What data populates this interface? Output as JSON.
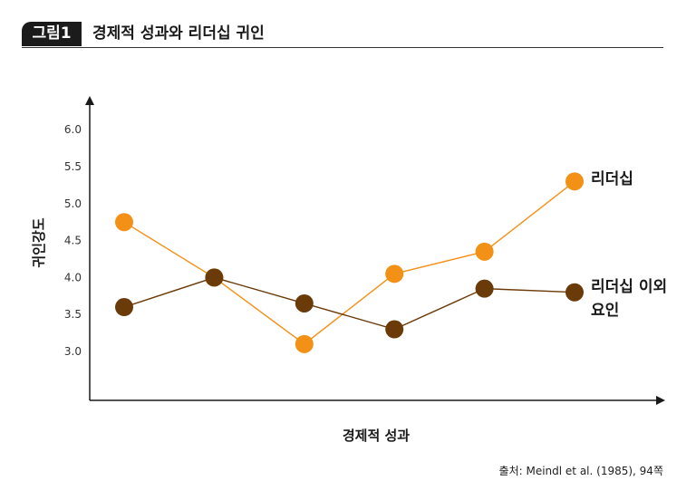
{
  "figure": {
    "label": "그림1",
    "title": "경제적 성과와 리더십 귀인",
    "source": "출처: Meindl et al. (1985), 94쪽"
  },
  "chart_data": {
    "type": "line",
    "xlabel": "경제적 성과",
    "ylabel": "귀인강도",
    "ylim": [
      2.5,
      6.5
    ],
    "yticks": [
      "6.0",
      "5.5",
      "5.0",
      "4.5",
      "4.0",
      "3.5",
      "3.0"
    ],
    "x": [
      1,
      2,
      3,
      4,
      5,
      6
    ],
    "grid": false,
    "legend": "inline-right",
    "series": [
      {
        "name": "리더십",
        "color": "#f39016",
        "values": [
          4.75,
          4.0,
          3.1,
          4.05,
          4.35,
          5.3
        ]
      },
      {
        "name": "리더십 이외 요인",
        "color": "#6b3a09",
        "values": [
          3.6,
          4.0,
          3.65,
          3.3,
          3.85,
          3.8
        ]
      }
    ]
  }
}
